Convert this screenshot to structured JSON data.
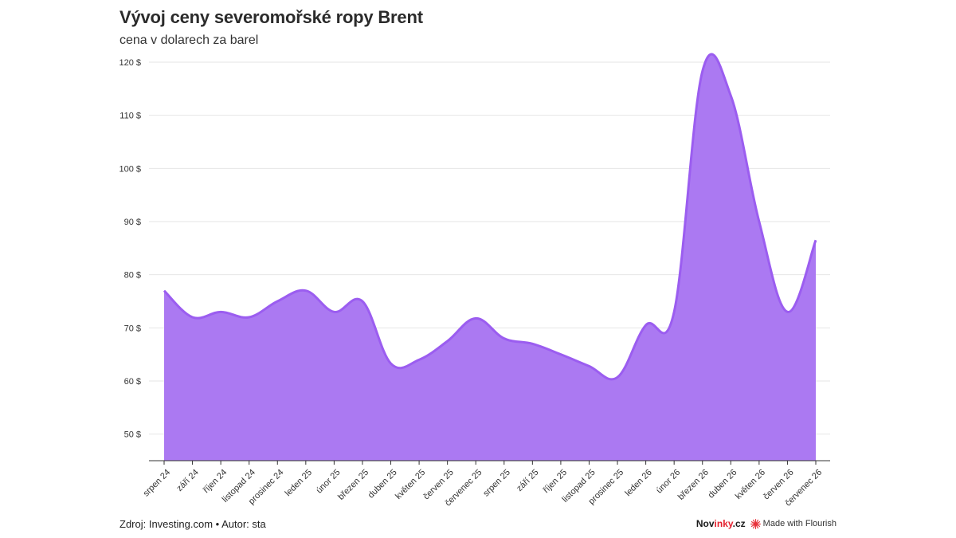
{
  "header": {
    "title": "Vývoj ceny severomořské ropy Brent",
    "subtitle": "cena v dolarech za barel"
  },
  "footer": {
    "source": "Zdroj: Investing.com • Autor: sta",
    "brand_prefix": "Nov",
    "brand_accent": "inky",
    "brand_suffix": ".cz",
    "flourish_label": "Made with Flourish",
    "flourish_icon": "flourish-star-icon"
  },
  "chart_data": {
    "type": "area",
    "title": "Vývoj ceny severomořské ropy Brent",
    "subtitle": "cena v dolarech za barel",
    "xlabel": "",
    "ylabel": "",
    "categories": [
      "srpen 24",
      "září 24",
      "říjen 24",
      "listopad 24",
      "prosinec 24",
      "leden 25",
      "únor 25",
      "březen 25",
      "duben 25",
      "květen 25",
      "červen 25",
      "červenec 25",
      "srpen 25",
      "září 25",
      "říjen 25",
      "listopad 25",
      "prosinec 25",
      "leden 26",
      "únor 26",
      "březen 26",
      "duben 26",
      "květen 26",
      "červen 26",
      "červenec 26"
    ],
    "series": [
      {
        "values": [
          77,
          72,
          73,
          72,
          75,
          77,
          73,
          75,
          63.3,
          64,
          67.5,
          71.8,
          68,
          67,
          65,
          62.8,
          60.7,
          70.5,
          73,
          118.3,
          113.7,
          90,
          73,
          86.5
        ]
      }
    ],
    "ylim": [
      45,
      120
    ],
    "yticks": [
      50,
      60,
      70,
      80,
      90,
      100,
      110,
      120
    ],
    "ytick_labels": [
      "50 $",
      "60 $",
      "70 $",
      "80 $",
      "90 $",
      "100 $",
      "110 $",
      "120 $"
    ],
    "grid": true,
    "colors": {
      "fill": "#ab79f2",
      "line": "#9b5df0"
    }
  }
}
